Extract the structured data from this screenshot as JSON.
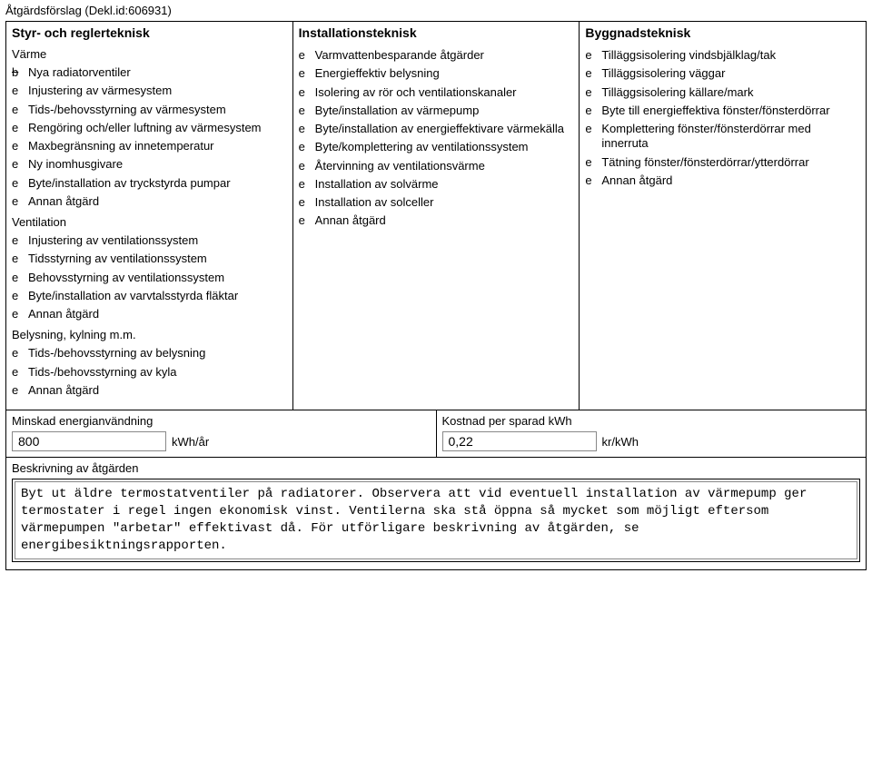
{
  "header": "Åtgärdsförslag (Dekl.id:606931)",
  "columns": {
    "col1": {
      "title": "Styr- och reglerteknisk",
      "groups": [
        {
          "label": "Värme",
          "items": [
            {
              "text": "Nya radiatorventiler",
              "checked": true
            },
            {
              "text": "Injustering av värmesystem",
              "checked": false
            },
            {
              "text": "Tids-/behovsstyrning av värmesystem",
              "checked": false
            },
            {
              "text": "Rengöring och/eller luftning av värmesystem",
              "checked": false
            },
            {
              "text": "Maxbegränsning av innetemperatur",
              "checked": false
            },
            {
              "text": "Ny inomhusgivare",
              "checked": false
            },
            {
              "text": "Byte/installation av tryckstyrda pumpar",
              "checked": false
            },
            {
              "text": "Annan åtgärd",
              "checked": false
            }
          ]
        },
        {
          "label": "Ventilation",
          "items": [
            {
              "text": "Injustering av ventilationssystem",
              "checked": false
            },
            {
              "text": "Tidsstyrning av ventilationssystem",
              "checked": false
            },
            {
              "text": "Behovsstyrning av ventilationssystem",
              "checked": false
            },
            {
              "text": "Byte/installation av varvtalsstyrda fläktar",
              "checked": false
            },
            {
              "text": "Annan åtgärd",
              "checked": false
            }
          ]
        },
        {
          "label": "Belysning, kylning m.m.",
          "items": [
            {
              "text": "Tids-/behovsstyrning av belysning",
              "checked": false
            },
            {
              "text": "Tids-/behovsstyrning av kyla",
              "checked": false
            },
            {
              "text": "Annan åtgärd",
              "checked": false
            }
          ]
        }
      ]
    },
    "col2": {
      "title": "Installationsteknisk",
      "groups": [
        {
          "label": "",
          "items": [
            {
              "text": "Varmvattenbesparande åtgärder",
              "checked": false
            },
            {
              "text": "Energieffektiv belysning",
              "checked": false
            },
            {
              "text": "Isolering av rör och ventilationskanaler",
              "checked": false
            },
            {
              "text": "Byte/installation av värmepump",
              "checked": false
            },
            {
              "text": "Byte/installation av energieffektivare värmekälla",
              "checked": false
            },
            {
              "text": "Byte/komplettering av ventilationssystem",
              "checked": false
            },
            {
              "text": "Återvinning av ventilationsvärme",
              "checked": false
            },
            {
              "text": "Installation av solvärme",
              "checked": false
            },
            {
              "text": "Installation av solceller",
              "checked": false
            },
            {
              "text": "Annan åtgärd",
              "checked": false
            }
          ]
        }
      ]
    },
    "col3": {
      "title": "Byggnadsteknisk",
      "groups": [
        {
          "label": "",
          "items": [
            {
              "text": "Tilläggsisolering vindsbjälklag/tak",
              "checked": false
            },
            {
              "text": "Tilläggsisolering väggar",
              "checked": false
            },
            {
              "text": "Tilläggsisolering källare/mark",
              "checked": false
            },
            {
              "text": "Byte till energieffektiva fönster/fönsterdörrar",
              "checked": false
            },
            {
              "text": "Komplettering fönster/fönsterdörrar med innerruta",
              "checked": false
            },
            {
              "text": "Tätning fönster/fönsterdörrar/ytterdörrar",
              "checked": false
            },
            {
              "text": "Annan åtgärd",
              "checked": false
            }
          ]
        }
      ]
    }
  },
  "footer": {
    "energy": {
      "label": "Minskad energianvändning",
      "value": "800",
      "unit": "kWh/år"
    },
    "cost": {
      "label": "Kostnad per sparad kWh",
      "value": "0,22",
      "unit": "kr/kWh"
    },
    "desc_label": "Beskrivning av åtgärden",
    "desc_text": "Byt ut äldre termostatventiler på radiatorer. Observera att vid eventuell installation av värmepump ger termostater i regel ingen ekonomisk vinst. Ventilerna ska stå öppna så mycket som möjligt eftersom värmepumpen \"arbetar\" effektivast då. För utförligare beskrivning av åtgärden, se energibesiktningsrapporten."
  },
  "glyphs": {
    "unchecked": "e",
    "checked": "b"
  }
}
